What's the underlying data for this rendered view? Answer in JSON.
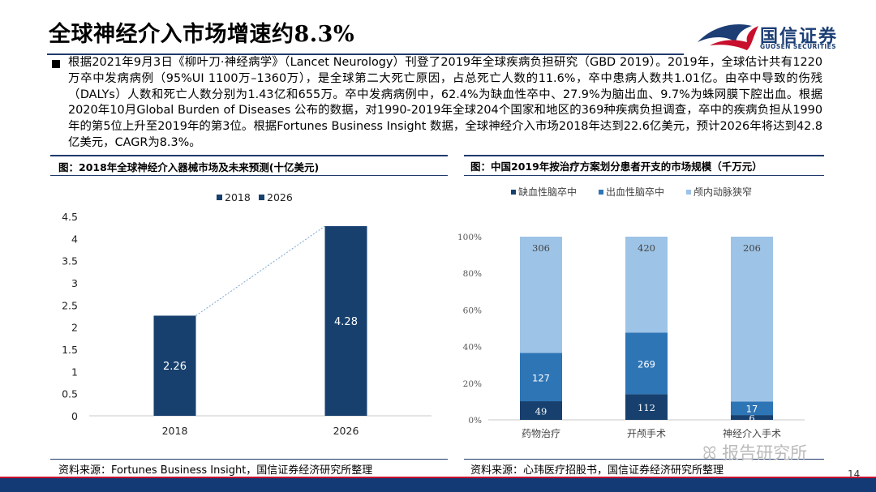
{
  "header": {
    "title_cn": "全球神经介入市场增速约",
    "title_num": "8.3%",
    "logo_cn": "国信证券",
    "logo_en": "GUOSEN SECURITIES",
    "logo_icon": "guosen-logo-icon"
  },
  "body": {
    "paragraph": "根据2021年9月3日《柳叶刀·神经病学》（Lancet Neurology）刊登了2019年全球疾病负担研究（GBD 2019）。2019年，全球估计共有1220万卒中发病病例（95%UI 1100万–1360万），是全球第二大死亡原因，占总死亡人数的11.6%，卒中患病人数共1.01亿。由卒中导致的伤残（DALYs）人数和死亡人数分别为1.43亿和655万。卒中发病病例中，62.4%为缺血性卒中、27.9%为脑出血、9.7%为蛛网膜下腔出血。根据2020年10月Global Burden of Diseases 公布的数据，对1990-2019年全球204个国家和地区的369种疾病负担调查，卒中的疾病负担从1990年的第5位上升至2019年的第3位。根据Fortunes Business Insight 数据，全球神经介入市场2018年达到22.6亿美元，预计2026年将达到42.8亿美元，CAGR为8.3%。"
  },
  "left_panel": {
    "title": "图：2018年全球神经介入器械市场及未来预测(十亿美元)",
    "source": "资料来源：Fortunes Business Insight，国信证券经济研究所整理"
  },
  "right_panel": {
    "title": "图：中国2019年按治疗方案划分患者开支的市场规模（千万元）",
    "source": "资料来源：心玮医疗招股书，国信证券经济研究所整理"
  },
  "watermark": "报告研究所",
  "page_number": "14",
  "colors": {
    "dark_blue": "#1c3e75",
    "navy": "#143a75",
    "red": "#c8102e",
    "series_dark": "#17406e",
    "series_mid": "#2e75b6",
    "series_light": "#9dc3e6"
  },
  "chart_data": [
    {
      "type": "bar",
      "categories": [
        "2018",
        "2026"
      ],
      "series": [
        {
          "name": "2018",
          "values": [
            2.26,
            null
          ]
        },
        {
          "name": "2026",
          "values": [
            null,
            4.28
          ]
        }
      ],
      "ylim": [
        0,
        4.5
      ],
      "yticks": [
        "0",
        "0.5",
        "1",
        "1.5",
        "2",
        "2.5",
        "3",
        "3.5",
        "4",
        "4.5"
      ],
      "data_labels": [
        "2.26",
        "4.28"
      ],
      "legend": "top-center",
      "grid": false
    },
    {
      "type": "bar",
      "stacked": "percent",
      "categories": [
        "药物治疗",
        "开颅手术",
        "神经介入手术"
      ],
      "series": [
        {
          "name": "缺血性脑卒中",
          "values": [
            49,
            112,
            6
          ]
        },
        {
          "name": "出血性脑卒中",
          "values": [
            127,
            269,
            17
          ]
        },
        {
          "name": "颅内动脉狭窄",
          "values": [
            306,
            420,
            206
          ]
        }
      ],
      "yticks": [
        "0%",
        "20%",
        "40%",
        "60%",
        "80%",
        "100%"
      ],
      "legend": "top-center",
      "grid": false
    }
  ]
}
